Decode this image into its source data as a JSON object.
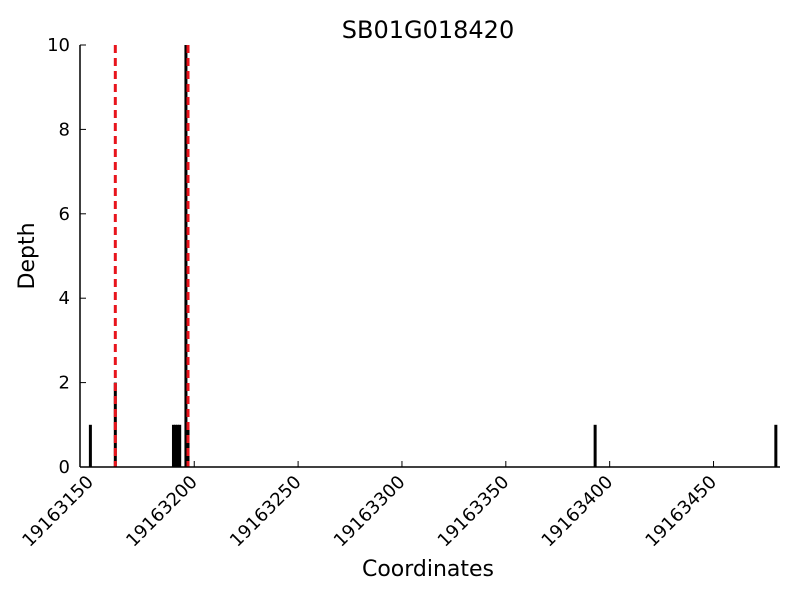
{
  "chart_data": {
    "type": "bar",
    "title": "SB01G018420",
    "xlabel": "Coordinates",
    "ylabel": "Depth",
    "xlim": [
      19163145,
      19163482
    ],
    "ylim": [
      0,
      10
    ],
    "x_ticks": [
      19163150,
      19163200,
      19163250,
      19163300,
      19163350,
      19163400,
      19163450
    ],
    "y_ticks": [
      0,
      2,
      4,
      6,
      8,
      10
    ],
    "grid": false,
    "series": [
      {
        "x": [
          19163150,
          19163162,
          19163190,
          19163191,
          19163192,
          19163193,
          19163196,
          19163197,
          19163393,
          19163480
        ],
        "values": [
          1,
          2,
          1,
          1,
          1,
          1,
          10,
          1,
          1,
          1
        ]
      }
    ],
    "reference_lines": [
      {
        "x": 19163162,
        "style": "dashed"
      },
      {
        "x": 19163197,
        "style": "dashed"
      }
    ],
    "colors": {
      "bars": "#000000",
      "reference_lines": "#e8141c",
      "axes": "#000000"
    }
  }
}
